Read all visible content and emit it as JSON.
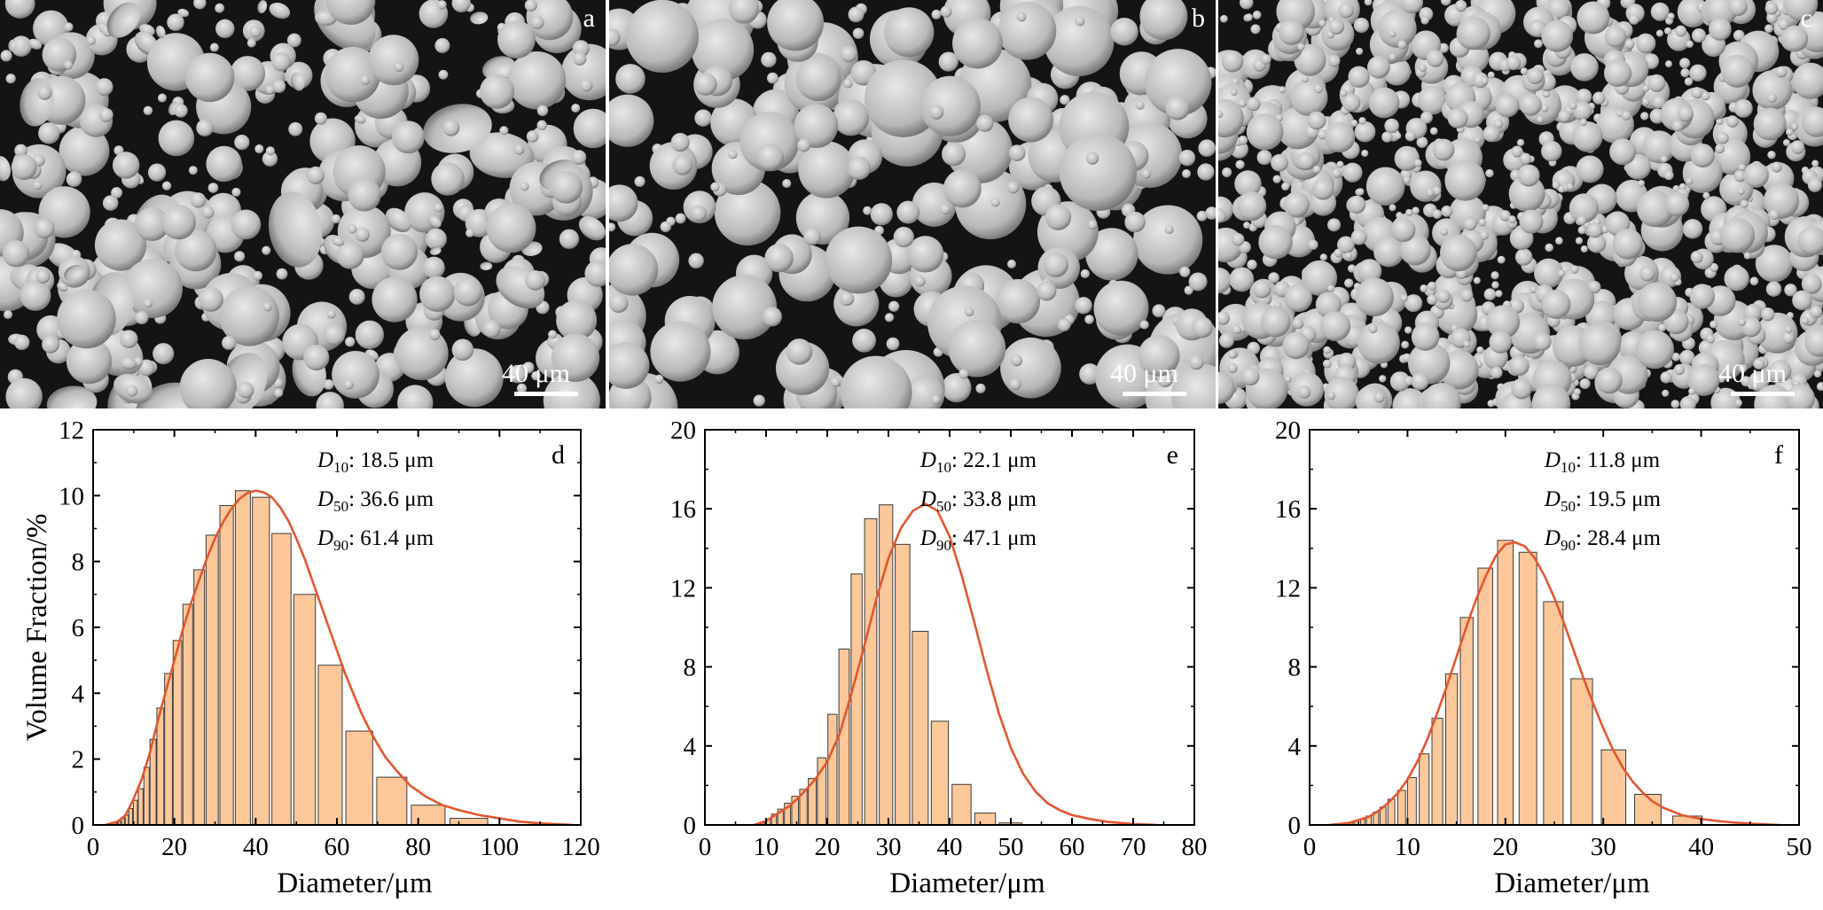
{
  "sem_panels": [
    {
      "letter": "a",
      "scale": "40 μm"
    },
    {
      "letter": "b",
      "scale": "40 μm"
    },
    {
      "letter": "c",
      "scale": "40 μm"
    }
  ],
  "colors": {
    "bar_fill": "#fcc89a",
    "bar_stroke": "#3a3a3a",
    "curve": "#e2572f",
    "axis": "#000000"
  },
  "chart_data": [
    {
      "type": "bar",
      "letter": "d",
      "xlabel": "Diameter/μm",
      "ylabel": "Volume Fraction/%",
      "xlim": [
        0,
        120
      ],
      "ylim": [
        0,
        12
      ],
      "xticks": [
        0,
        20,
        40,
        60,
        80,
        100,
        120
      ],
      "yticks": [
        0,
        2,
        4,
        6,
        8,
        10,
        12
      ],
      "stats": [
        {
          "label": "D",
          "sub": "10",
          "value": ": 18.5 μm"
        },
        {
          "label": "D",
          "sub": "50",
          "value": ": 36.6 μm"
        },
        {
          "label": "D",
          "sub": "90",
          "value": ": 61.4 μm"
        }
      ],
      "bars": [
        {
          "x": 5.5,
          "w": 0.5,
          "y": 0.05
        },
        {
          "x": 6.2,
          "w": 0.6,
          "y": 0.1
        },
        {
          "x": 7.0,
          "w": 0.7,
          "y": 0.2
        },
        {
          "x": 7.9,
          "w": 0.8,
          "y": 0.3
        },
        {
          "x": 8.8,
          "w": 0.9,
          "y": 0.5
        },
        {
          "x": 9.9,
          "w": 1.0,
          "y": 0.75
        },
        {
          "x": 11.1,
          "w": 1.2,
          "y": 1.1
        },
        {
          "x": 12.5,
          "w": 1.3,
          "y": 1.75
        },
        {
          "x": 14.0,
          "w": 1.5,
          "y": 2.6
        },
        {
          "x": 15.7,
          "w": 1.7,
          "y": 3.55
        },
        {
          "x": 17.6,
          "w": 1.9,
          "y": 4.6
        },
        {
          "x": 19.7,
          "w": 2.1,
          "y": 5.6
        },
        {
          "x": 22.1,
          "w": 2.4,
          "y": 6.7
        },
        {
          "x": 24.8,
          "w": 2.6,
          "y": 7.75
        },
        {
          "x": 27.8,
          "w": 3.0,
          "y": 8.8
        },
        {
          "x": 31.2,
          "w": 3.3,
          "y": 9.7
        },
        {
          "x": 35.0,
          "w": 3.7,
          "y": 10.15
        },
        {
          "x": 39.2,
          "w": 4.2,
          "y": 9.95
        },
        {
          "x": 44.0,
          "w": 4.7,
          "y": 8.85
        },
        {
          "x": 49.4,
          "w": 5.3,
          "y": 7.0
        },
        {
          "x": 55.4,
          "w": 5.9,
          "y": 4.85
        },
        {
          "x": 62.2,
          "w": 6.6,
          "y": 2.85
        },
        {
          "x": 69.8,
          "w": 7.4,
          "y": 1.45
        },
        {
          "x": 78.3,
          "w": 8.3,
          "y": 0.6
        },
        {
          "x": 87.8,
          "w": 9.3,
          "y": 0.2
        }
      ],
      "curve": [
        [
          3,
          0
        ],
        [
          6,
          0.1
        ],
        [
          8,
          0.3
        ],
        [
          10,
          0.8
        ],
        [
          12,
          1.4
        ],
        [
          14,
          2.2
        ],
        [
          16,
          3.2
        ],
        [
          18,
          4.1
        ],
        [
          20,
          5.0
        ],
        [
          22,
          5.9
        ],
        [
          24,
          6.7
        ],
        [
          26,
          7.4
        ],
        [
          28,
          8.1
        ],
        [
          30,
          8.7
        ],
        [
          32,
          9.2
        ],
        [
          34,
          9.6
        ],
        [
          36,
          9.9
        ],
        [
          38,
          10.08
        ],
        [
          40,
          10.15
        ],
        [
          42,
          10.1
        ],
        [
          44,
          9.95
        ],
        [
          46,
          9.65
        ],
        [
          48,
          9.25
        ],
        [
          50,
          8.7
        ],
        [
          52,
          8.1
        ],
        [
          54,
          7.4
        ],
        [
          56,
          6.7
        ],
        [
          58,
          6.0
        ],
        [
          60,
          5.3
        ],
        [
          62,
          4.6
        ],
        [
          64,
          4.0
        ],
        [
          66,
          3.4
        ],
        [
          68,
          2.9
        ],
        [
          70,
          2.45
        ],
        [
          72,
          2.05
        ],
        [
          75,
          1.6
        ],
        [
          78,
          1.2
        ],
        [
          82,
          0.85
        ],
        [
          86,
          0.6
        ],
        [
          90,
          0.45
        ],
        [
          95,
          0.3
        ],
        [
          100,
          0.2
        ],
        [
          105,
          0.1
        ],
        [
          110,
          0.05
        ],
        [
          118,
          0
        ]
      ]
    },
    {
      "type": "bar",
      "letter": "e",
      "xlabel": "Diameter/μm",
      "ylabel": "",
      "xlim": [
        0,
        80
      ],
      "ylim": [
        0,
        20
      ],
      "xticks": [
        0,
        10,
        20,
        30,
        40,
        50,
        60,
        70,
        80
      ],
      "yticks": [
        0,
        4,
        8,
        12,
        16,
        20
      ],
      "stats": [
        {
          "label": "D",
          "sub": "10",
          "value": ": 22.1 μm"
        },
        {
          "label": "D",
          "sub": "50",
          "value": ": 33.8 μm"
        },
        {
          "label": "D",
          "sub": "90",
          "value": ": 47.1 μm"
        }
      ],
      "bars": [
        {
          "x": 9.2,
          "w": 0.6,
          "y": 0.1
        },
        {
          "x": 10.0,
          "w": 0.7,
          "y": 0.3
        },
        {
          "x": 10.9,
          "w": 0.8,
          "y": 0.55
        },
        {
          "x": 11.9,
          "w": 0.9,
          "y": 0.8
        },
        {
          "x": 13.0,
          "w": 1.0,
          "y": 1.1
        },
        {
          "x": 14.2,
          "w": 1.1,
          "y": 1.45
        },
        {
          "x": 15.5,
          "w": 1.2,
          "y": 1.8
        },
        {
          "x": 16.9,
          "w": 1.3,
          "y": 2.35
        },
        {
          "x": 18.4,
          "w": 1.4,
          "y": 3.4
        },
        {
          "x": 20.1,
          "w": 1.5,
          "y": 5.6
        },
        {
          "x": 21.9,
          "w": 1.7,
          "y": 8.9
        },
        {
          "x": 23.9,
          "w": 1.8,
          "y": 12.7
        },
        {
          "x": 26.1,
          "w": 2.0,
          "y": 15.5
        },
        {
          "x": 28.5,
          "w": 2.2,
          "y": 16.2
        },
        {
          "x": 31.1,
          "w": 2.4,
          "y": 14.2
        },
        {
          "x": 33.9,
          "w": 2.6,
          "y": 9.8
        },
        {
          "x": 37.0,
          "w": 2.8,
          "y": 5.25
        },
        {
          "x": 40.4,
          "w": 3.1,
          "y": 2.05
        },
        {
          "x": 44.1,
          "w": 3.4,
          "y": 0.6
        },
        {
          "x": 48.1,
          "w": 3.7,
          "y": 0.1
        }
      ],
      "curve": [
        [
          8,
          0
        ],
        [
          10,
          0.2
        ],
        [
          12,
          0.6
        ],
        [
          14,
          1.0
        ],
        [
          16,
          1.6
        ],
        [
          18,
          2.3
        ],
        [
          20,
          3.2
        ],
        [
          22,
          4.6
        ],
        [
          24,
          6.7
        ],
        [
          26,
          9.0
        ],
        [
          28,
          11.4
        ],
        [
          30,
          13.5
        ],
        [
          32,
          15.0
        ],
        [
          34,
          15.9
        ],
        [
          36,
          16.25
        ],
        [
          38,
          15.9
        ],
        [
          40,
          14.6
        ],
        [
          42,
          12.6
        ],
        [
          44,
          10.3
        ],
        [
          46,
          7.9
        ],
        [
          48,
          5.7
        ],
        [
          50,
          3.9
        ],
        [
          52,
          2.6
        ],
        [
          54,
          1.7
        ],
        [
          56,
          1.1
        ],
        [
          58,
          0.75
        ],
        [
          60,
          0.5
        ],
        [
          63,
          0.3
        ],
        [
          66,
          0.15
        ],
        [
          70,
          0.05
        ],
        [
          74,
          0
        ]
      ]
    },
    {
      "type": "bar",
      "letter": "f",
      "xlabel": "Diameter/μm",
      "ylabel": "",
      "xlim": [
        0,
        50
      ],
      "ylim": [
        0,
        20
      ],
      "xticks": [
        0,
        10,
        20,
        30,
        40,
        50
      ],
      "yticks": [
        0,
        4,
        8,
        12,
        16,
        20
      ],
      "stats": [
        {
          "label": "D",
          "sub": "10",
          "value": ": 11.8 μm"
        },
        {
          "label": "D",
          "sub": "50",
          "value": ": 19.5 μm"
        },
        {
          "label": "D",
          "sub": "90",
          "value": ": 28.4 μm"
        }
      ],
      "bars": [
        {
          "x": 3.7,
          "w": 0.3,
          "y": 0.05
        },
        {
          "x": 4.1,
          "w": 0.35,
          "y": 0.1
        },
        {
          "x": 4.6,
          "w": 0.4,
          "y": 0.2
        },
        {
          "x": 5.2,
          "w": 0.45,
          "y": 0.3
        },
        {
          "x": 5.8,
          "w": 0.5,
          "y": 0.45
        },
        {
          "x": 6.5,
          "w": 0.55,
          "y": 0.65
        },
        {
          "x": 7.2,
          "w": 0.6,
          "y": 0.9
        },
        {
          "x": 8.0,
          "w": 0.7,
          "y": 1.3
        },
        {
          "x": 9.0,
          "w": 0.8,
          "y": 1.75
        },
        {
          "x": 10.0,
          "w": 0.9,
          "y": 2.4
        },
        {
          "x": 11.2,
          "w": 1.0,
          "y": 3.6
        },
        {
          "x": 12.5,
          "w": 1.1,
          "y": 5.4
        },
        {
          "x": 13.9,
          "w": 1.2,
          "y": 7.65
        },
        {
          "x": 15.4,
          "w": 1.3,
          "y": 10.5
        },
        {
          "x": 17.2,
          "w": 1.5,
          "y": 13.0
        },
        {
          "x": 19.2,
          "w": 1.6,
          "y": 14.4
        },
        {
          "x": 21.4,
          "w": 1.8,
          "y": 13.8
        },
        {
          "x": 23.9,
          "w": 2.0,
          "y": 11.3
        },
        {
          "x": 26.7,
          "w": 2.2,
          "y": 7.4
        },
        {
          "x": 29.8,
          "w": 2.5,
          "y": 3.8
        },
        {
          "x": 33.2,
          "w": 2.7,
          "y": 1.55
        },
        {
          "x": 37.1,
          "w": 3.0,
          "y": 0.45
        }
      ],
      "curve": [
        [
          2,
          0
        ],
        [
          4,
          0.1
        ],
        [
          6,
          0.4
        ],
        [
          7,
          0.7
        ],
        [
          8,
          1.1
        ],
        [
          9,
          1.6
        ],
        [
          10,
          2.3
        ],
        [
          11,
          3.2
        ],
        [
          12,
          4.3
        ],
        [
          13,
          5.6
        ],
        [
          14,
          7.0
        ],
        [
          15,
          8.5
        ],
        [
          16,
          10.0
        ],
        [
          17,
          11.4
        ],
        [
          18,
          12.6
        ],
        [
          19,
          13.6
        ],
        [
          20,
          14.2
        ],
        [
          21,
          14.3
        ],
        [
          22,
          14.1
        ],
        [
          23,
          13.5
        ],
        [
          24,
          12.6
        ],
        [
          25,
          11.5
        ],
        [
          26,
          10.2
        ],
        [
          27,
          8.8
        ],
        [
          28,
          7.4
        ],
        [
          29,
          6.1
        ],
        [
          30,
          4.9
        ],
        [
          31,
          3.8
        ],
        [
          32,
          2.9
        ],
        [
          33,
          2.2
        ],
        [
          34,
          1.65
        ],
        [
          35,
          1.2
        ],
        [
          36,
          0.9
        ],
        [
          38,
          0.5
        ],
        [
          40,
          0.3
        ],
        [
          42,
          0.18
        ],
        [
          44,
          0.1
        ],
        [
          46,
          0.04
        ],
        [
          48,
          0
        ]
      ]
    }
  ]
}
